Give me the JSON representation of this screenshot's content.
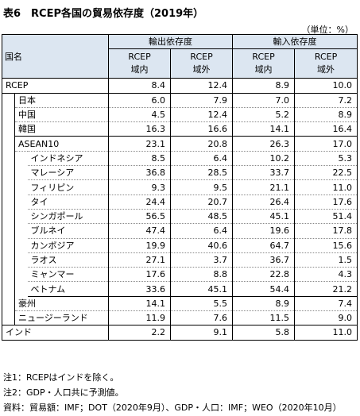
{
  "title": "表6　RCEP各国の貿易依存度（2019年）",
  "unit": "（単位：%）",
  "headers": {
    "country": "国名",
    "export_group": "輸出依存度",
    "import_group": "輸入依存度",
    "col1": [
      "RCEP",
      "域内"
    ],
    "col2": [
      "RCEP",
      "域外"
    ],
    "col3": [
      "RCEP",
      "域内"
    ],
    "col4": [
      "RCEP",
      "域外"
    ]
  },
  "rows": [
    {
      "name": "RCEP",
      "v": [
        "8.4",
        "12.4",
        "8.9",
        "10.0"
      ]
    },
    {
      "name": "日本",
      "v": [
        "6.0",
        "7.9",
        "7.0",
        "7.2"
      ]
    },
    {
      "name": "中国",
      "v": [
        "4.5",
        "12.4",
        "5.2",
        "8.9"
      ]
    },
    {
      "name": "韓国",
      "v": [
        "16.3",
        "16.6",
        "14.1",
        "16.4"
      ]
    },
    {
      "name": "ASEAN10",
      "v": [
        "23.1",
        "20.8",
        "26.3",
        "17.0"
      ]
    },
    {
      "name": "インドネシア",
      "v": [
        "8.5",
        "6.4",
        "10.2",
        "5.3"
      ]
    },
    {
      "name": "マレーシア",
      "v": [
        "36.8",
        "28.5",
        "33.7",
        "22.5"
      ]
    },
    {
      "name": "フィリピン",
      "v": [
        "9.3",
        "9.5",
        "21.1",
        "11.0"
      ]
    },
    {
      "name": "タイ",
      "v": [
        "24.4",
        "20.7",
        "26.4",
        "17.6"
      ]
    },
    {
      "name": "シンガポール",
      "v": [
        "56.5",
        "48.5",
        "45.1",
        "51.4"
      ]
    },
    {
      "name": "ブルネイ",
      "v": [
        "47.4",
        "6.4",
        "19.6",
        "17.8"
      ]
    },
    {
      "name": "カンボジア",
      "v": [
        "19.9",
        "40.6",
        "64.7",
        "15.6"
      ]
    },
    {
      "name": "ラオス",
      "v": [
        "27.1",
        "3.7",
        "36.7",
        "1.5"
      ]
    },
    {
      "name": "ミャンマー",
      "v": [
        "17.6",
        "8.8",
        "22.8",
        "4.3"
      ]
    },
    {
      "name": "ベトナム",
      "v": [
        "33.6",
        "45.1",
        "54.4",
        "21.2"
      ]
    },
    {
      "name": "豪州",
      "v": [
        "14.1",
        "5.5",
        "8.9",
        "7.4"
      ]
    },
    {
      "name": "ニュージーランド",
      "v": [
        "11.9",
        "7.6",
        "11.5",
        "9.0"
      ]
    },
    {
      "name": "インド",
      "v": [
        "2.2",
        "9.1",
        "5.8",
        "11.0"
      ]
    }
  ],
  "notes": [
    "注1：RCEPはインドを除く。",
    "注2：GDP・人口共に予測値。",
    "資料：貿易額：IMF；DOT（2020年9月）、GDP・人口：IMF；WEO（2020年10月）"
  ]
}
